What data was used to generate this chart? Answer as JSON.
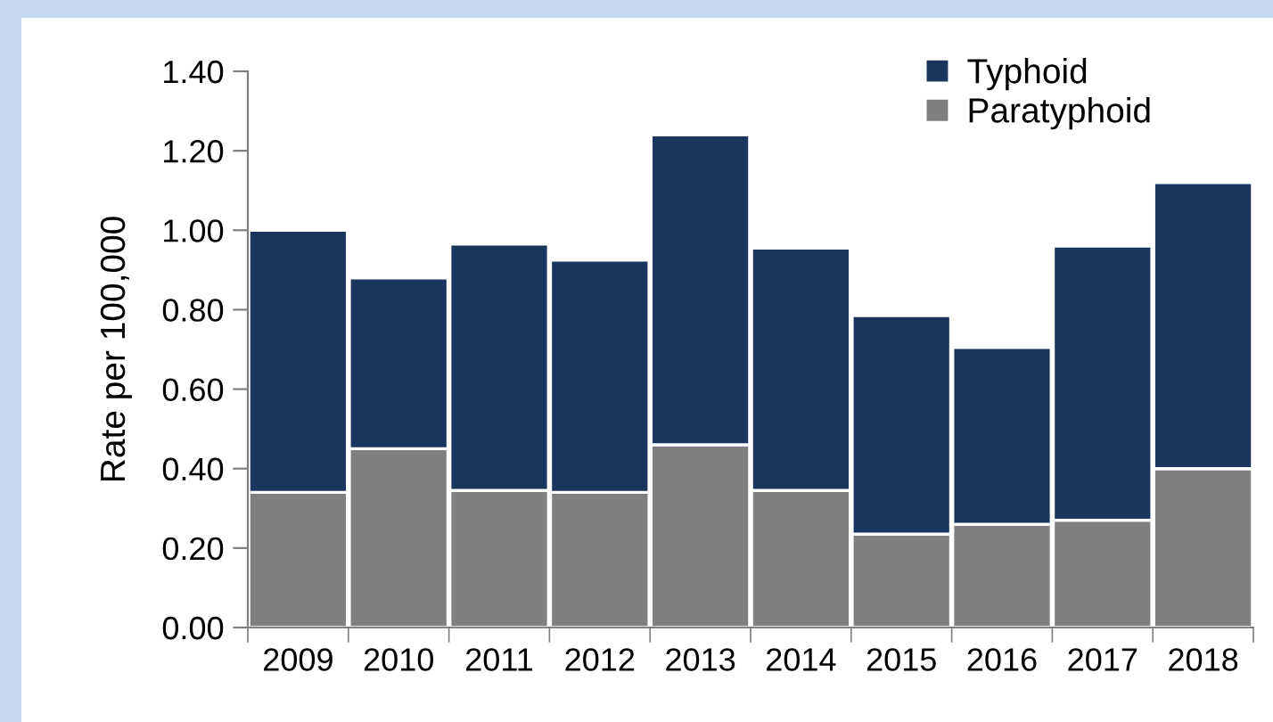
{
  "chart_data": {
    "type": "bar",
    "stacked": true,
    "ylabel": "Rate per 100,000",
    "categories": [
      "2009",
      "2010",
      "2011",
      "2012",
      "2013",
      "2014",
      "2015",
      "2016",
      "2017",
      "2018"
    ],
    "series": [
      {
        "name": "Paratyphoid",
        "color": "#7f7f7f",
        "values": [
          0.34,
          0.45,
          0.345,
          0.34,
          0.46,
          0.345,
          0.235,
          0.26,
          0.27,
          0.4
        ]
      },
      {
        "name": "Typhoid",
        "color": "#1a365d",
        "values": [
          0.66,
          0.43,
          0.62,
          0.585,
          0.78,
          0.61,
          0.55,
          0.445,
          0.69,
          0.72
        ]
      }
    ],
    "ylim": [
      0,
      1.4
    ],
    "yticks": [
      {
        "value": 0,
        "label": "0.00"
      },
      {
        "value": 0.2,
        "label": "0.20"
      },
      {
        "value": 0.4,
        "label": "0.40"
      },
      {
        "value": 0.6,
        "label": "0.60"
      },
      {
        "value": 0.8,
        "label": "0.80"
      },
      {
        "value": 1.0,
        "label": "1.00"
      },
      {
        "value": 1.2,
        "label": "1.20"
      },
      {
        "value": 1.4,
        "label": "1.40"
      }
    ],
    "grid": false,
    "legend": "top right"
  }
}
